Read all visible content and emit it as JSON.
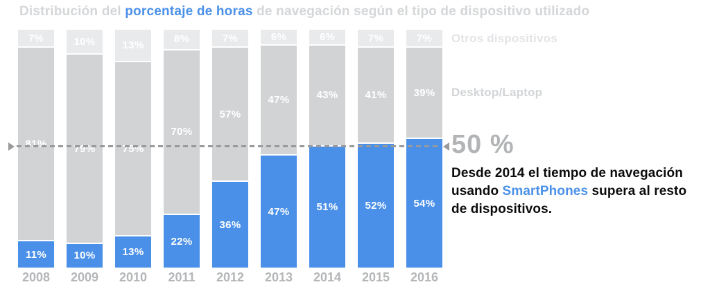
{
  "title": {
    "prefix": "Distribución del ",
    "highlight": "porcentaje de horas",
    "suffix": " de navegación según el tipo de dispositivo utilizado"
  },
  "chart_data": {
    "type": "bar",
    "stacked": true,
    "title": "Distribución del porcentaje de horas de navegación según el tipo de dispositivo utilizado",
    "xlabel": "",
    "ylabel": "",
    "ylim": [
      0,
      100
    ],
    "grid": false,
    "legend_position": "right",
    "categories": [
      "2008",
      "2009",
      "2010",
      "2011",
      "2012",
      "2013",
      "2014",
      "2015",
      "2016"
    ],
    "series": [
      {
        "name": "SmartPhones",
        "color": "#4a90e8",
        "values": [
          11,
          10,
          13,
          22,
          36,
          47,
          51,
          52,
          54
        ]
      },
      {
        "name": "Desktop/Laptop",
        "color": "#d1d3d5",
        "values": [
          81,
          79,
          75,
          70,
          57,
          47,
          43,
          41,
          39
        ]
      },
      {
        "name": "Otros dispositivos",
        "color": "#e9eaec",
        "values": [
          7,
          10,
          13,
          8,
          7,
          6,
          6,
          7,
          7
        ]
      }
    ],
    "reference_line": {
      "value": 50,
      "label": "50 %"
    }
  },
  "annotation": {
    "text_before": "Desde 2014 el tiempo de navegación usando ",
    "text_highlight": "SmartPhones",
    "text_after": " supera al resto de dispositivos."
  },
  "colors": {
    "smartphones_blue": "#4a90e8",
    "desktop_gray": "#d1d3d5",
    "others_gray": "#e9eaec",
    "title_gray": "#d4d6d8",
    "year_label_gray": "#b4b6b8",
    "reference_line_gray": "#98999b",
    "annotation_black": "#0b0b0b"
  }
}
